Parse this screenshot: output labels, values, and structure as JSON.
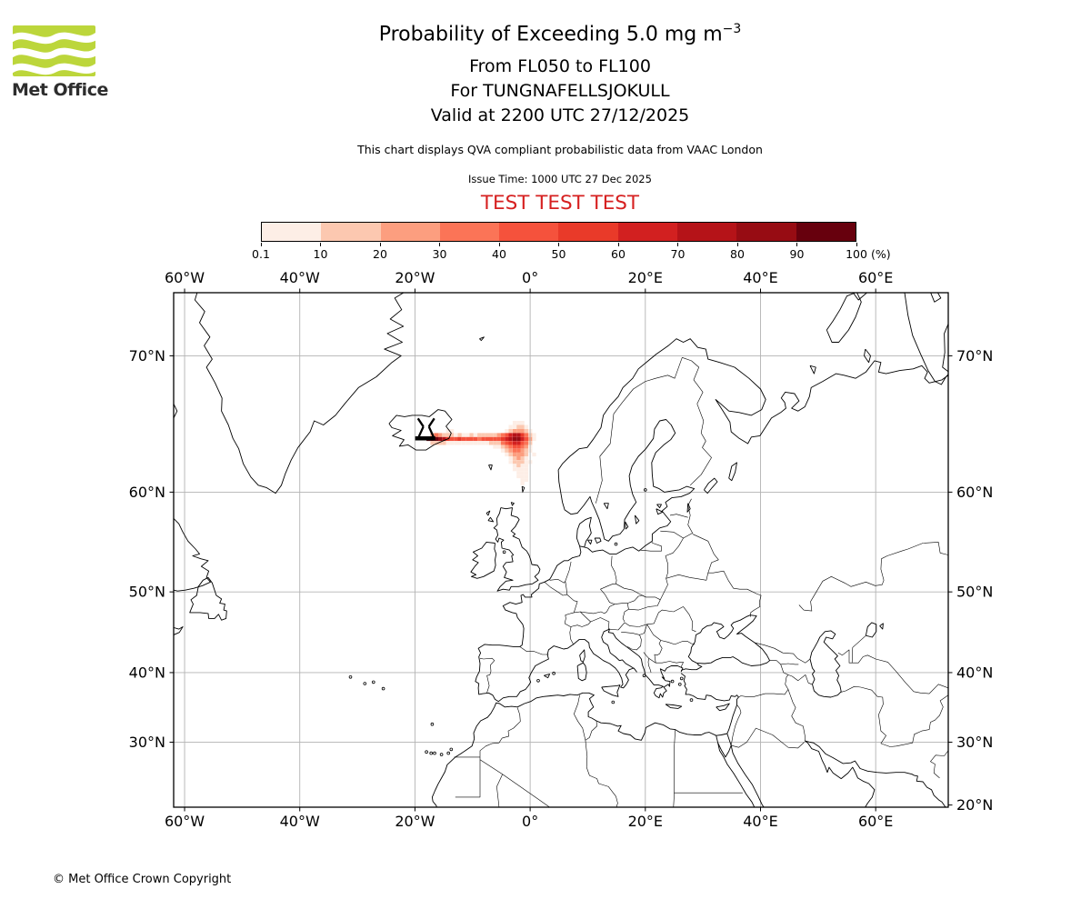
{
  "logo": {
    "brand": "Met Office",
    "green": "#bcd63b",
    "text_color": "#2d2d2d"
  },
  "header": {
    "title_main": "Probability of Exceeding 5.0 mg m",
    "title_exp": "−3",
    "subtitle1": "From FL050 to FL100",
    "subtitle2": "For TUNGNAFELLSJOKULL",
    "subtitle3": "Valid at 2200 UTC 27/12/2025",
    "disclaimer": "This chart displays QVA compliant probabilistic data from VAAC London",
    "issue_time": "Issue Time: 1000 UTC 27 Dec 2025",
    "test_banner": "TEST TEST TEST",
    "test_color": "#d62020"
  },
  "footer": {
    "copyright": "© Met Office Crown Copyright"
  },
  "chart_data": {
    "type": "heatmap",
    "projection": "mercator",
    "map_extent": {
      "lon_min": -61.9,
      "lon_max": 72.6,
      "lat_min": 19.64,
      "lat_max": 73.47
    },
    "grid": {
      "lon_lines": [
        -60,
        -40,
        -20,
        0,
        20,
        40,
        60
      ],
      "lat_lines": [
        30,
        40,
        50,
        60,
        70
      ],
      "color": "#b3b3b3"
    },
    "x_tick_labels": [
      "60°W",
      "40°W",
      "20°W",
      "0°",
      "20°E",
      "40°E",
      "60°E"
    ],
    "x_tick_lons": [
      -60,
      -40,
      -20,
      0,
      20,
      40,
      60
    ],
    "y_tick_labels_left": [
      "70°N",
      "60°N",
      "50°N",
      "40°N",
      "30°N"
    ],
    "y_tick_lats_left": [
      70,
      60,
      50,
      40,
      30
    ],
    "y_tick_labels_right": [
      "70°N",
      "60°N",
      "50°N",
      "40°N",
      "30°N",
      "20°N"
    ],
    "y_tick_lats_right": [
      70,
      60,
      50,
      40,
      30,
      20
    ],
    "colorbar": {
      "labels": [
        "0.1",
        "10",
        "20",
        "30",
        "40",
        "50",
        "60",
        "70",
        "80",
        "90",
        "100"
      ],
      "bounds": [
        0.1,
        10,
        20,
        30,
        40,
        50,
        60,
        70,
        80,
        90,
        100
      ],
      "unit_label": "(%)",
      "colors": [
        "#fdeee6",
        "#fcc8b0",
        "#fc9e7f",
        "#fb7457",
        "#f5523c",
        "#e93a29",
        "#d22020",
        "#b51318",
        "#970c13",
        "#67000d"
      ]
    },
    "volcano": {
      "name": "TUNGNAFELLSJOKULL",
      "lon": -17.9,
      "lat": 64.74,
      "marker": "volcano-symbol"
    },
    "plume": {
      "units": "%",
      "lon0": -18.0,
      "dlon": 0.68,
      "lat0": 65.7,
      "dlat": 0.3,
      "rows": 17,
      "cols": 28,
      "values": [
        [
          0,
          0,
          0,
          0,
          0,
          0,
          0,
          0,
          0,
          0,
          0,
          0,
          0,
          0,
          0,
          0,
          0,
          0,
          0,
          0,
          0,
          0,
          4,
          6,
          4,
          0,
          0,
          0
        ],
        [
          0,
          0,
          0,
          0,
          0,
          0,
          0,
          0,
          0,
          0,
          0,
          0,
          0,
          0,
          0,
          0,
          0,
          0,
          0,
          0,
          0,
          5,
          8,
          12,
          10,
          5,
          0,
          0
        ],
        [
          0,
          0,
          0,
          0,
          0,
          5,
          5,
          0,
          0,
          0,
          0,
          0,
          0,
          0,
          0,
          0,
          0,
          0,
          0,
          0,
          8,
          15,
          22,
          28,
          22,
          12,
          6,
          0
        ],
        [
          0,
          25,
          30,
          22,
          15,
          12,
          10,
          8,
          10,
          8,
          8,
          10,
          8,
          10,
          12,
          10,
          12,
          15,
          20,
          30,
          45,
          60,
          72,
          70,
          55,
          35,
          15,
          6
        ],
        [
          97,
          96,
          93,
          88,
          72,
          55,
          48,
          45,
          50,
          45,
          40,
          45,
          42,
          38,
          42,
          45,
          42,
          45,
          48,
          52,
          60,
          72,
          85,
          82,
          65,
          42,
          20,
          8
        ],
        [
          0,
          12,
          15,
          12,
          10,
          8,
          8,
          6,
          8,
          6,
          6,
          8,
          6,
          8,
          8,
          8,
          10,
          12,
          15,
          30,
          45,
          58,
          68,
          62,
          48,
          30,
          12,
          0
        ],
        [
          0,
          0,
          0,
          0,
          0,
          0,
          0,
          0,
          0,
          0,
          0,
          0,
          0,
          0,
          0,
          0,
          0,
          5,
          8,
          15,
          28,
          38,
          45,
          42,
          32,
          20,
          8,
          0
        ],
        [
          0,
          0,
          0,
          0,
          0,
          0,
          0,
          0,
          0,
          0,
          0,
          0,
          0,
          0,
          0,
          0,
          0,
          0,
          0,
          8,
          15,
          24,
          30,
          32,
          25,
          14,
          6,
          0
        ],
        [
          0,
          0,
          0,
          0,
          0,
          0,
          0,
          0,
          0,
          0,
          0,
          0,
          0,
          0,
          0,
          0,
          0,
          0,
          0,
          0,
          8,
          14,
          20,
          26,
          20,
          10,
          0,
          4
        ],
        [
          0,
          0,
          0,
          0,
          0,
          0,
          0,
          0,
          0,
          0,
          0,
          0,
          0,
          0,
          0,
          0,
          0,
          0,
          0,
          0,
          0,
          8,
          14,
          20,
          15,
          8,
          0,
          0
        ],
        [
          0,
          0,
          0,
          0,
          0,
          0,
          0,
          0,
          0,
          0,
          0,
          0,
          0,
          0,
          0,
          0,
          0,
          0,
          0,
          0,
          0,
          5,
          10,
          14,
          12,
          6,
          4,
          0
        ],
        [
          0,
          0,
          0,
          0,
          0,
          0,
          0,
          0,
          0,
          0,
          0,
          0,
          0,
          0,
          0,
          0,
          0,
          0,
          0,
          0,
          0,
          0,
          6,
          10,
          9,
          5,
          0,
          0
        ],
        [
          0,
          0,
          0,
          0,
          0,
          0,
          0,
          0,
          0,
          0,
          0,
          0,
          0,
          0,
          0,
          0,
          0,
          0,
          0,
          0,
          0,
          0,
          4,
          8,
          6,
          4,
          0,
          0
        ],
        [
          0,
          0,
          0,
          0,
          0,
          0,
          0,
          0,
          0,
          0,
          0,
          0,
          0,
          0,
          0,
          0,
          0,
          0,
          0,
          0,
          0,
          0,
          0,
          6,
          8,
          4,
          0,
          0
        ],
        [
          0,
          0,
          0,
          0,
          0,
          0,
          0,
          0,
          0,
          0,
          0,
          0,
          0,
          0,
          0,
          0,
          0,
          0,
          0,
          0,
          0,
          0,
          0,
          4,
          6,
          3,
          0,
          0
        ],
        [
          0,
          0,
          0,
          0,
          0,
          0,
          0,
          0,
          0,
          0,
          0,
          0,
          0,
          0,
          0,
          0,
          0,
          0,
          0,
          0,
          0,
          0,
          0,
          0,
          4,
          2,
          0,
          0
        ],
        [
          0,
          0,
          0,
          0,
          0,
          0,
          0,
          0,
          0,
          0,
          0,
          0,
          0,
          0,
          0,
          0,
          0,
          0,
          0,
          0,
          0,
          0,
          0,
          0,
          2,
          0,
          0,
          0
        ]
      ]
    }
  }
}
